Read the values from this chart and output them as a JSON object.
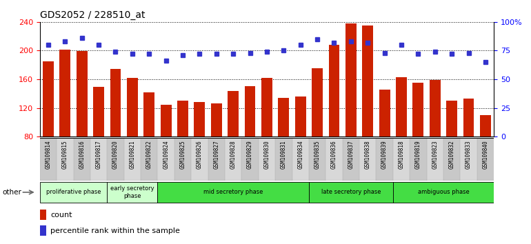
{
  "title": "GDS2052 / 228510_at",
  "samples": [
    "GSM109814",
    "GSM109815",
    "GSM109816",
    "GSM109817",
    "GSM109820",
    "GSM109821",
    "GSM109822",
    "GSM109824",
    "GSM109825",
    "GSM109826",
    "GSM109827",
    "GSM109828",
    "GSM109829",
    "GSM109830",
    "GSM109831",
    "GSM109834",
    "GSM109835",
    "GSM109836",
    "GSM109837",
    "GSM109838",
    "GSM109839",
    "GSM109818",
    "GSM109819",
    "GSM109823",
    "GSM109832",
    "GSM109833",
    "GSM109840"
  ],
  "counts": [
    185,
    201,
    199,
    149,
    174,
    162,
    142,
    124,
    130,
    128,
    126,
    144,
    150,
    162,
    134,
    136,
    175,
    208,
    238,
    235,
    146,
    163,
    155,
    159,
    130,
    133,
    110
  ],
  "percentiles": [
    80,
    83,
    86,
    80,
    74,
    72,
    72,
    66,
    71,
    72,
    72,
    72,
    73,
    74,
    75,
    80,
    85,
    82,
    83,
    82,
    73,
    80,
    72,
    74,
    72,
    73,
    65
  ],
  "ymin": 80,
  "ymax": 240,
  "y2min": 0,
  "y2max": 100,
  "yticks": [
    80,
    120,
    160,
    200,
    240
  ],
  "y2ticks": [
    0,
    25,
    50,
    75,
    100
  ],
  "y2ticklabels": [
    "0",
    "25",
    "50",
    "75",
    "100%"
  ],
  "bar_color": "#cc2200",
  "dot_color": "#3333cc",
  "bar_bottom": 80,
  "phases": [
    {
      "label": "proliferative phase",
      "start": 0,
      "end": 4,
      "color": "#ccffcc"
    },
    {
      "label": "early secretory\nphase",
      "start": 4,
      "end": 7,
      "color": "#ccffcc"
    },
    {
      "label": "mid secretory phase",
      "start": 7,
      "end": 16,
      "color": "#44dd44"
    },
    {
      "label": "late secretory phase",
      "start": 16,
      "end": 21,
      "color": "#44dd44"
    },
    {
      "label": "ambiguous phase",
      "start": 21,
      "end": 27,
      "color": "#44dd44"
    }
  ],
  "title_fontsize": 10,
  "legend_count_label": "count",
  "legend_pct_label": "percentile rank within the sample",
  "other_label": "other"
}
